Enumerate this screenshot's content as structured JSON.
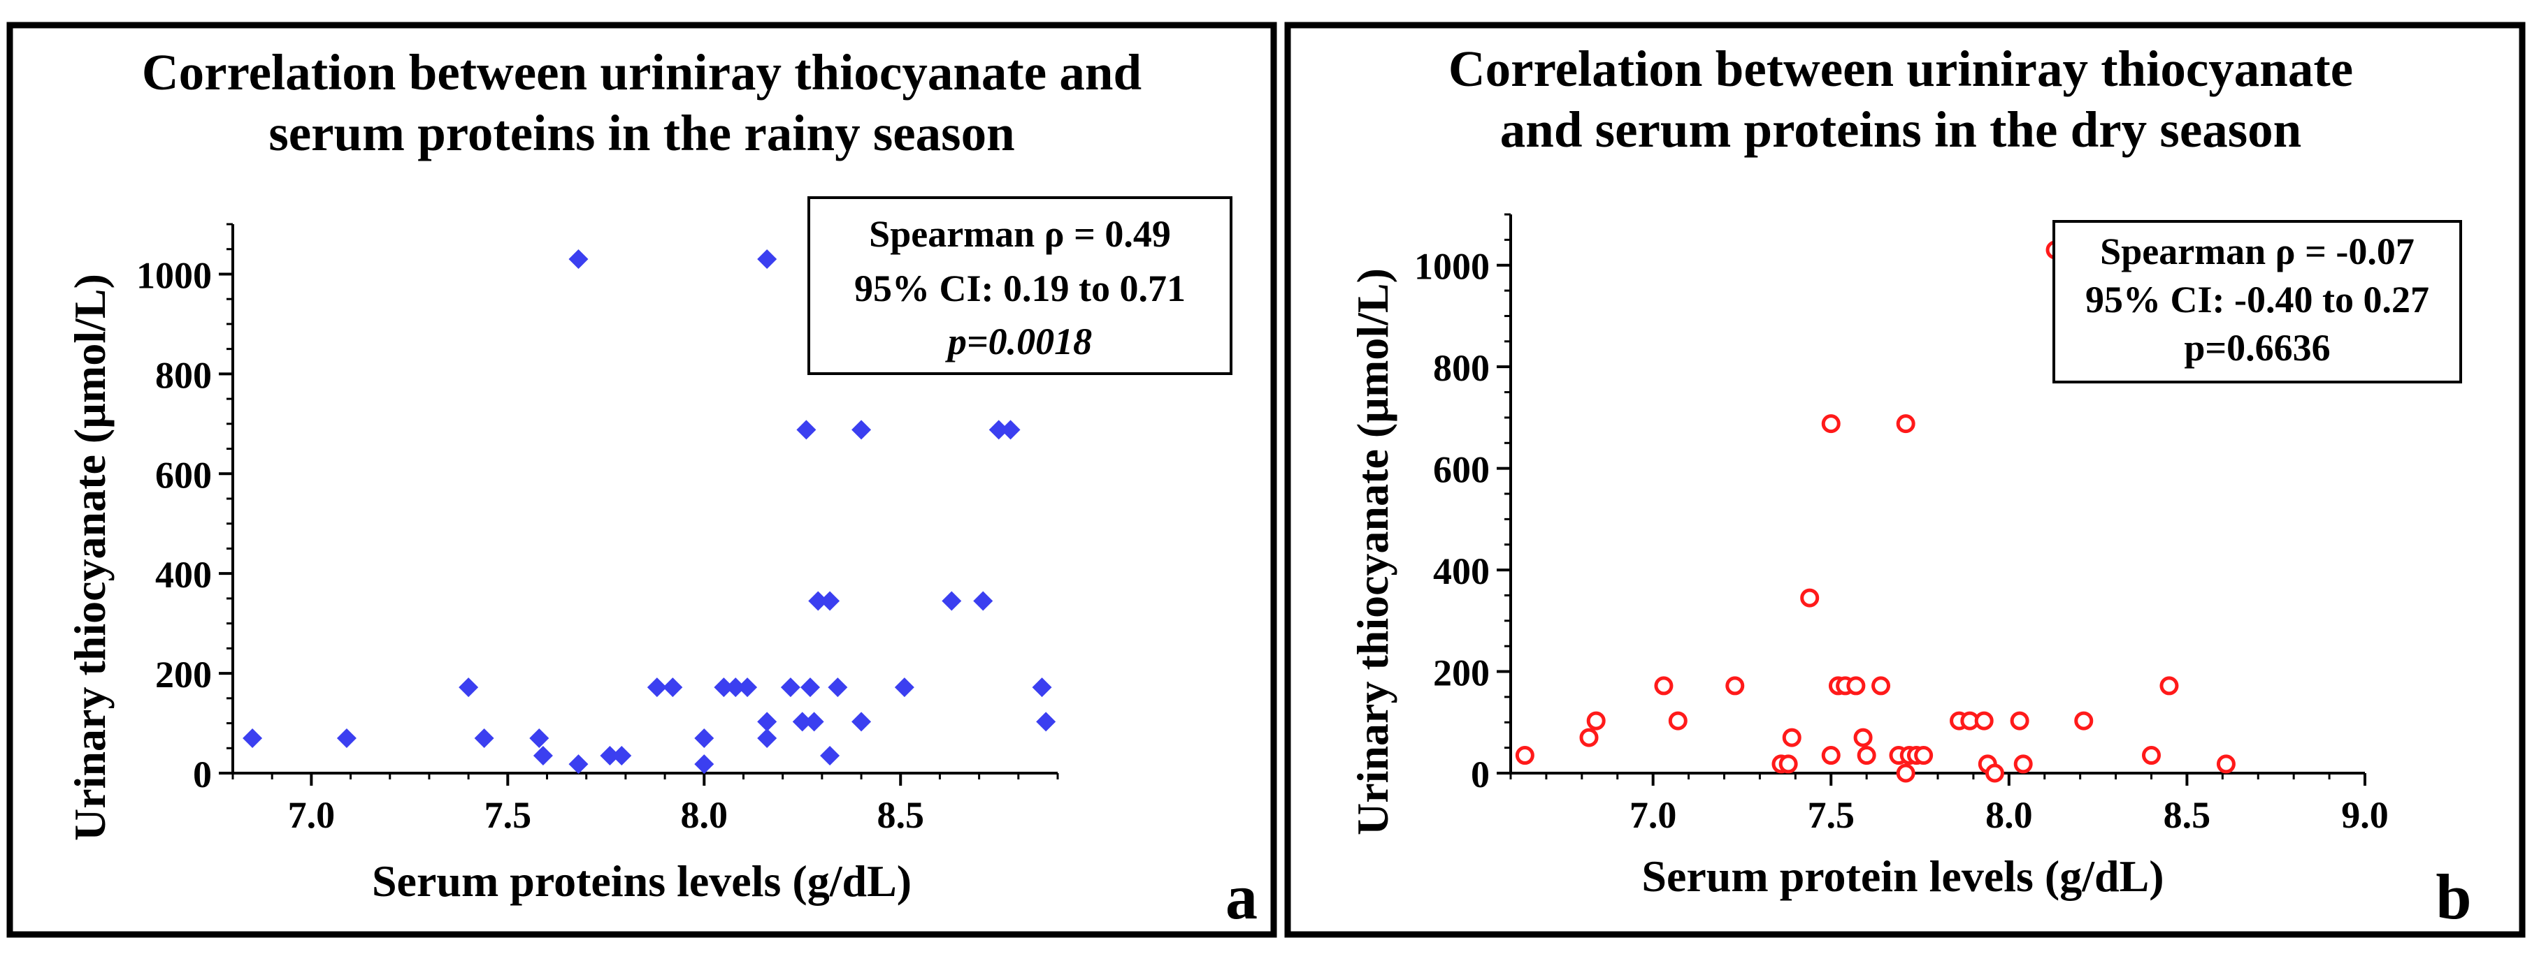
{
  "chart_data": [
    {
      "type": "scatter",
      "panel_label": "a",
      "title": [
        "Correlation between uriniray thiocyanate and",
        "serum proteins in the rainy season"
      ],
      "xlabel": "Serum proteins levels (g/dL)",
      "ylabel": "Urinary thiocyanate (µmol/L)",
      "xlim": [
        6.8,
        8.9
      ],
      "ylim": [
        0,
        1100
      ],
      "xticks": [
        7.0,
        7.5,
        8.0,
        8.5
      ],
      "xtick_labels": [
        "7.0",
        "7.5",
        "8.0",
        "8.5"
      ],
      "yticks": [
        0,
        200,
        400,
        600,
        800,
        1000
      ],
      "ytick_labels": [
        "0",
        "200",
        "400",
        "600",
        "800",
        "1000"
      ],
      "marker": "diamond",
      "color": "#3b3ff0",
      "stats": [
        "Spearman ρ = 0.49",
        "95% CI: 0.19 to 0.71",
        "p=0.0018"
      ],
      "stats_italic_line": 2,
      "legend_position": "top-right",
      "series": [
        {
          "name": "rainy season",
          "points": [
            [
              6.85,
              70
            ],
            [
              7.09,
              70
            ],
            [
              7.4,
              172
            ],
            [
              7.44,
              70
            ],
            [
              7.58,
              70
            ],
            [
              7.59,
              35
            ],
            [
              7.68,
              1030
            ],
            [
              7.68,
              18
            ],
            [
              7.76,
              35
            ],
            [
              7.79,
              35
            ],
            [
              7.88,
              172
            ],
            [
              7.92,
              172
            ],
            [
              8.0,
              70
            ],
            [
              8.0,
              18
            ],
            [
              8.05,
              172
            ],
            [
              8.08,
              172
            ],
            [
              8.11,
              172
            ],
            [
              8.16,
              1030
            ],
            [
              8.16,
              103
            ],
            [
              8.16,
              70
            ],
            [
              8.22,
              172
            ],
            [
              8.25,
              103
            ],
            [
              8.26,
              688
            ],
            [
              8.27,
              172
            ],
            [
              8.28,
              103
            ],
            [
              8.29,
              345
            ],
            [
              8.32,
              345
            ],
            [
              8.32,
              35
            ],
            [
              8.34,
              172
            ],
            [
              8.4,
              688
            ],
            [
              8.4,
              103
            ],
            [
              8.51,
              172
            ],
            [
              8.63,
              345
            ],
            [
              8.71,
              345
            ],
            [
              8.75,
              688
            ],
            [
              8.78,
              688
            ],
            [
              8.86,
              172
            ],
            [
              8.87,
              103
            ]
          ]
        }
      ]
    },
    {
      "type": "scatter",
      "panel_label": "b",
      "title": [
        "Correlation between uriniray thiocyanate",
        "and serum proteins in the dry season"
      ],
      "xlabel": "Serum protein levels (g/dL)",
      "ylabel": "Urinary thiocyanate (µmol/L)",
      "xlim": [
        6.6,
        9.0
      ],
      "ylim": [
        0,
        1100
      ],
      "xticks": [
        7.0,
        7.5,
        8.0,
        8.5,
        9.0
      ],
      "xtick_labels": [
        "7.0",
        "7.5",
        "8.0",
        "8.5",
        "9.0"
      ],
      "yticks": [
        0,
        200,
        400,
        600,
        800,
        1000
      ],
      "ytick_labels": [
        "0",
        "200",
        "400",
        "600",
        "800",
        "1000"
      ],
      "marker": "circle-open",
      "color": "#ff1a1a",
      "stats": [
        "Spearman ρ = -0.07",
        "95% CI: -0.40 to 0.27",
        "p=0.6636"
      ],
      "stats_italic_line": -1,
      "legend_position": "top-right",
      "series": [
        {
          "name": "dry season",
          "points": [
            [
              6.64,
              35
            ],
            [
              6.82,
              70
            ],
            [
              6.84,
              103
            ],
            [
              7.03,
              172
            ],
            [
              7.07,
              103
            ],
            [
              7.23,
              172
            ],
            [
              7.36,
              18
            ],
            [
              7.38,
              18
            ],
            [
              7.39,
              70
            ],
            [
              7.44,
              345
            ],
            [
              7.5,
              688
            ],
            [
              7.5,
              35
            ],
            [
              7.52,
              172
            ],
            [
              7.54,
              172
            ],
            [
              7.57,
              172
            ],
            [
              7.59,
              70
            ],
            [
              7.6,
              35
            ],
            [
              7.64,
              172
            ],
            [
              7.69,
              35
            ],
            [
              7.71,
              688
            ],
            [
              7.71,
              0
            ],
            [
              7.72,
              35
            ],
            [
              7.74,
              35
            ],
            [
              7.76,
              35
            ],
            [
              7.86,
              103
            ],
            [
              7.89,
              103
            ],
            [
              7.93,
              103
            ],
            [
              7.94,
              18
            ],
            [
              7.96,
              0
            ],
            [
              8.03,
              103
            ],
            [
              8.04,
              18
            ],
            [
              8.13,
              1030
            ],
            [
              8.21,
              103
            ],
            [
              8.4,
              35
            ],
            [
              8.45,
              172
            ],
            [
              8.61,
              18
            ]
          ]
        }
      ]
    }
  ]
}
